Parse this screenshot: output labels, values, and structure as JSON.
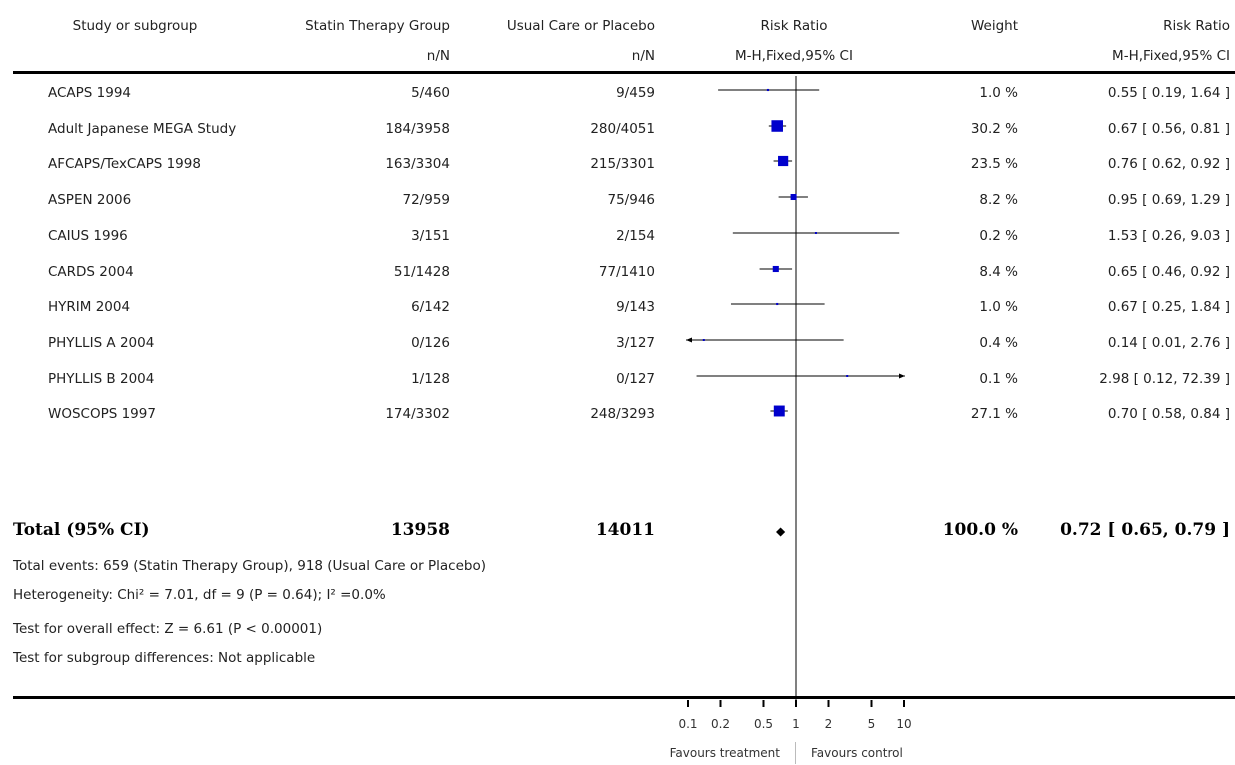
{
  "headers": {
    "study": "Study or subgroup",
    "treat": "Statin Therapy Group",
    "treat_sub": "n/N",
    "ctrl": "Usual Care or Placebo",
    "ctrl_sub": "n/N",
    "plot": "Risk Ratio",
    "plot_sub": "M-H,Fixed,95% CI",
    "weight": "Weight",
    "rr": "Risk Ratio",
    "rr_sub": "M-H,Fixed,95% CI"
  },
  "rows": [
    {
      "study": "ACAPS 1994",
      "treat": "5/460",
      "ctrl": "9/459",
      "weight": "1.0 %",
      "rr": "0.55 [ 0.19, 1.64 ]"
    },
    {
      "study": "Adult Japanese MEGA Study",
      "treat": "184/3958",
      "ctrl": "280/4051",
      "weight": "30.2 %",
      "rr": "0.67 [ 0.56, 0.81 ]"
    },
    {
      "study": "AFCAPS/TexCAPS 1998",
      "treat": "163/3304",
      "ctrl": "215/3301",
      "weight": "23.5 %",
      "rr": "0.76 [ 0.62, 0.92 ]"
    },
    {
      "study": "ASPEN 2006",
      "treat": "72/959",
      "ctrl": "75/946",
      "weight": "8.2 %",
      "rr": "0.95 [ 0.69, 1.29 ]"
    },
    {
      "study": "CAIUS 1996",
      "treat": "3/151",
      "ctrl": "2/154",
      "weight": "0.2 %",
      "rr": "1.53 [ 0.26, 9.03 ]"
    },
    {
      "study": "CARDS 2004",
      "treat": "51/1428",
      "ctrl": "77/1410",
      "weight": "8.4 %",
      "rr": "0.65 [ 0.46, 0.92 ]"
    },
    {
      "study": "HYRIM 2004",
      "treat": "6/142",
      "ctrl": "9/143",
      "weight": "1.0 %",
      "rr": "0.67 [ 0.25, 1.84 ]"
    },
    {
      "study": "PHYLLIS A 2004",
      "treat": "0/126",
      "ctrl": "3/127",
      "weight": "0.4 %",
      "rr": "0.14 [ 0.01, 2.76 ]"
    },
    {
      "study": "PHYLLIS B 2004",
      "treat": "1/128",
      "ctrl": "0/127",
      "weight": "0.1 %",
      "rr": "2.98 [ 0.12, 72.39 ]"
    },
    {
      "study": "WOSCOPS 1997",
      "treat": "174/3302",
      "ctrl": "248/3293",
      "weight": "27.1 %",
      "rr": "0.70 [ 0.58, 0.84 ]"
    }
  ],
  "total": {
    "label": "Total (95% CI)",
    "treat": "13958",
    "ctrl": "14011",
    "weight": "100.0 %",
    "rr": "0.72 [ 0.65, 0.79 ]"
  },
  "footnotes": {
    "events": "Total events: 659 (Statin Therapy Group), 918 (Usual Care or Placebo)",
    "heterogeneity": "Heterogeneity: Chi² = 7.01, df = 9 (P = 0.64); I² =0.0%",
    "overall": "Test for overall effect: Z = 6.61  (P < 0.00001)",
    "subgroup": "Test for subgroup differences: Not applicable"
  },
  "axis": {
    "favours_left": "Favours treatment",
    "favours_right": "Favours control"
  },
  "colors": {
    "marker": "#0000cc",
    "line": "#000000"
  },
  "chart_data": {
    "type": "forest",
    "x_scale": "log",
    "xlim": [
      0.1,
      10
    ],
    "ticks": [
      0.1,
      0.2,
      0.5,
      1,
      2,
      5,
      10
    ],
    "tick_labels": [
      "0.1",
      "0.2",
      "0.5",
      "1",
      "2",
      "5",
      "10"
    ],
    "reference_line": 1,
    "studies": [
      {
        "name": "ACAPS 1994",
        "rr": 0.55,
        "lo": 0.19,
        "hi": 1.64,
        "weight": 1.0
      },
      {
        "name": "Adult Japanese MEGA Study",
        "rr": 0.67,
        "lo": 0.56,
        "hi": 0.81,
        "weight": 30.2
      },
      {
        "name": "AFCAPS/TexCAPS 1998",
        "rr": 0.76,
        "lo": 0.62,
        "hi": 0.92,
        "weight": 23.5
      },
      {
        "name": "ASPEN 2006",
        "rr": 0.95,
        "lo": 0.69,
        "hi": 1.29,
        "weight": 8.2
      },
      {
        "name": "CAIUS 1996",
        "rr": 1.53,
        "lo": 0.26,
        "hi": 9.03,
        "weight": 0.2
      },
      {
        "name": "CARDS 2004",
        "rr": 0.65,
        "lo": 0.46,
        "hi": 0.92,
        "weight": 8.4
      },
      {
        "name": "HYRIM 2004",
        "rr": 0.67,
        "lo": 0.25,
        "hi": 1.84,
        "weight": 1.0
      },
      {
        "name": "PHYLLIS A 2004",
        "rr": 0.14,
        "lo": 0.01,
        "hi": 2.76,
        "weight": 0.4
      },
      {
        "name": "PHYLLIS B 2004",
        "rr": 2.98,
        "lo": 0.12,
        "hi": 72.39,
        "weight": 0.1
      },
      {
        "name": "WOSCOPS 1997",
        "rr": 0.7,
        "lo": 0.58,
        "hi": 0.84,
        "weight": 27.1
      }
    ],
    "pooled": {
      "name": "Total (95% CI)",
      "rr": 0.72,
      "lo": 0.65,
      "hi": 0.79,
      "weight": 100.0
    }
  }
}
